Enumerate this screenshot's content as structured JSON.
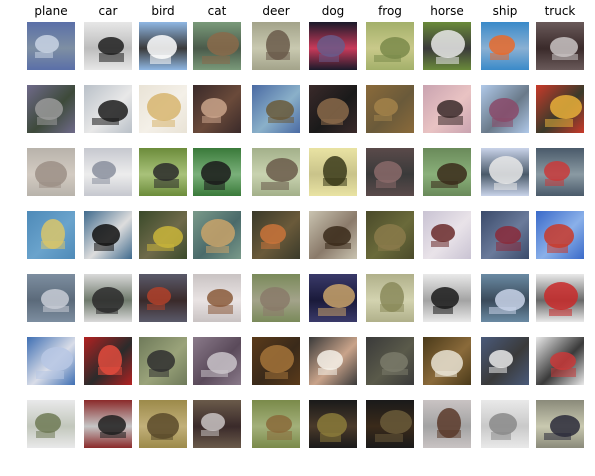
{
  "columns": [
    {
      "label": "plane",
      "tints": [
        [
          "#5a6fa8",
          "#c9d3e4",
          "#7e8fa3"
        ],
        [
          "#6f6a8a",
          "#9a9a9a",
          "#3d4a3a"
        ],
        [
          "#b8b3ab",
          "#9c8f86",
          "#d3cbc2"
        ],
        [
          "#4e8ab8",
          "#d9c56a",
          "#6aa3cc"
        ],
        [
          "#7d8ea0",
          "#c8ccd6",
          "#5b6a7a"
        ],
        [
          "#3f6fb3",
          "#b7c7e4",
          "#d9dde8"
        ],
        [
          "#e9e9ea",
          "#6f7a55",
          "#c2c7bc"
        ]
      ]
    },
    {
      "label": "car",
      "tints": [
        [
          "#e7e7e7",
          "#1f1f1f",
          "#bdbdbd"
        ],
        [
          "#b9c0c8",
          "#1c1c1c",
          "#e8e8e8"
        ],
        [
          "#c6c8cf",
          "#8a8f9e",
          "#ededed"
        ],
        [
          "#3f6a8d",
          "#111111",
          "#dddddd"
        ],
        [
          "#d9d9d9",
          "#2a2a2a",
          "#6f7a6c"
        ],
        [
          "#b32121",
          "#e24b3d",
          "#2b2b2b"
        ],
        [
          "#8b2a2a",
          "#1e1e1e",
          "#c5c5c5"
        ]
      ]
    },
    {
      "label": "bird",
      "tints": [
        [
          "#8fb7e3",
          "#ffffff",
          "#3a3a3a"
        ],
        [
          "#e9e3d6",
          "#d7b56e",
          "#f4f0e8"
        ],
        [
          "#6c8c3b",
          "#2a2a2a",
          "#a9c27a"
        ],
        [
          "#3a4a2a",
          "#c9b53a",
          "#6f6a4a"
        ],
        [
          "#5a5a6a",
          "#b0412a",
          "#3a2a2a"
        ],
        [
          "#6f7a5a",
          "#2f2f2f",
          "#9aa37a"
        ],
        [
          "#9c8a4a",
          "#5a4a2a",
          "#c2b07a"
        ]
      ]
    },
    {
      "label": "cat",
      "tints": [
        [
          "#7a9a7a",
          "#8a6a4a",
          "#4a5a4a"
        ],
        [
          "#3a2a2a",
          "#c9a38a",
          "#6a4a3a"
        ],
        [
          "#3a7a3a",
          "#1a1a1a",
          "#7ab07a"
        ],
        [
          "#7a9a8a",
          "#c9a36a",
          "#4a6a6a"
        ],
        [
          "#c9c3c3",
          "#8a5a3a",
          "#e9e3e3"
        ],
        [
          "#8a7a8a",
          "#c9c3c9",
          "#5a4a5a"
        ],
        [
          "#6a5a4a",
          "#c9c3c3",
          "#3a2a2a"
        ]
      ]
    },
    {
      "label": "deer",
      "tints": [
        [
          "#a3a38a",
          "#6a5a4a",
          "#c9c9b0"
        ],
        [
          "#4a6aa3",
          "#6a5a3a",
          "#8ab0c9"
        ],
        [
          "#a3b08a",
          "#6a5a4a",
          "#c9d3b0"
        ],
        [
          "#3a3a2a",
          "#c9733a",
          "#6a5a3a"
        ],
        [
          "#7a8a5a",
          "#8a7a6a",
          "#a3a38a"
        ],
        [
          "#5a3a1a",
          "#a3733a",
          "#3a2a1a"
        ],
        [
          "#7a8a4a",
          "#8a6a3a",
          "#a3b07a"
        ]
      ]
    },
    {
      "label": "dog",
      "tints": [
        [
          "#1a1a2a",
          "#6a5a8a",
          "#c93a5a"
        ],
        [
          "#3a2a2a",
          "#8a6a4a",
          "#1a1a1a"
        ],
        [
          "#e9e3a3",
          "#3a3a1a",
          "#c9c38a"
        ],
        [
          "#c9c3b0",
          "#3a2a1a",
          "#8a7a6a"
        ],
        [
          "#3a3a6a",
          "#c9a36a",
          "#1a1a3a"
        ],
        [
          "#3a3a3a",
          "#f4f0e8",
          "#c9a38a"
        ],
        [
          "#1a1a1a",
          "#8a7a3a",
          "#4a3a2a"
        ]
      ]
    },
    {
      "label": "frog",
      "tints": [
        [
          "#a3b06a",
          "#7a8a4a",
          "#c9c98a"
        ],
        [
          "#8a6a3a",
          "#a3834a",
          "#6a5a3a"
        ],
        [
          "#5a4a4a",
          "#8a6a6a",
          "#3a3a3a"
        ],
        [
          "#4a4a2a",
          "#8a7a4a",
          "#6a6a3a"
        ],
        [
          "#b0b08a",
          "#8a8a5a",
          "#d3d3b0"
        ],
        [
          "#3a3a3a",
          "#7a7a6a",
          "#5a5a4a"
        ],
        [
          "#1a1a1a",
          "#6a5a3a",
          "#3a2a1a"
        ]
      ]
    },
    {
      "label": "horse",
      "tints": [
        [
          "#6a8a3a",
          "#e9e9e9",
          "#3a3a3a"
        ],
        [
          "#c9a3b0",
          "#3a2a2a",
          "#e9c3c3"
        ],
        [
          "#6a8a5a",
          "#3a2a1a",
          "#8ab07a"
        ],
        [
          "#c9c3d3",
          "#6a2a2a",
          "#e9e3e9"
        ],
        [
          "#e9e9e9",
          "#1a1a1a",
          "#a3a3a3"
        ],
        [
          "#4a3a1a",
          "#e9e3d3",
          "#8a6a3a"
        ],
        [
          "#c9c3c3",
          "#5a3a2a",
          "#a3a3a3"
        ]
      ]
    },
    {
      "label": "ship",
      "tints": [
        [
          "#3a8ac9",
          "#e96a2a",
          "#8ab0d3"
        ],
        [
          "#b0c9e9",
          "#8a4a6a",
          "#6a7a8a"
        ],
        [
          "#c9d3e9",
          "#e9e9e9",
          "#4a5a6a"
        ],
        [
          "#3a4a6a",
          "#8a2a3a",
          "#6a7a9a"
        ],
        [
          "#6a8aa3",
          "#c9d3e9",
          "#3a4a5a"
        ],
        [
          "#4a5a7a",
          "#e9e9e9",
          "#3a3a3a"
        ],
        [
          "#e9e9e9",
          "#8a8a8a",
          "#c9c9c9"
        ]
      ]
    },
    {
      "label": "truck",
      "tints": [
        [
          "#6a5a5a",
          "#c9c3c3",
          "#3a2a2a"
        ],
        [
          "#c93a2a",
          "#e9b03a",
          "#3a3a2a"
        ],
        [
          "#4a5a6a",
          "#c93a3a",
          "#8a9aa3"
        ],
        [
          "#3a6ac9",
          "#c93a2a",
          "#8ab0e9"
        ],
        [
          "#e9e9e9",
          "#c92a2a",
          "#6a6a6a"
        ],
        [
          "#e9e9e9",
          "#c93a3a",
          "#3a3a3a"
        ],
        [
          "#8a8a7a",
          "#2a2a3a",
          "#c9c9b0"
        ]
      ]
    }
  ]
}
